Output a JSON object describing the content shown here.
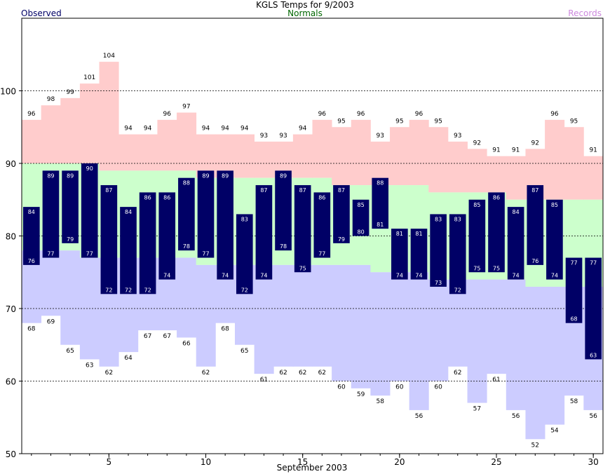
{
  "chart_data": {
    "type": "bar",
    "title": "KGLS Temps for 9/2003",
    "xlabel": "September 2003",
    "ylabel": "",
    "xlim": [
      0.5,
      30.5
    ],
    "ylim": [
      50,
      110
    ],
    "y_ticks": [
      50,
      60,
      70,
      80,
      90,
      100
    ],
    "x_ticks": [
      5,
      10,
      15,
      20,
      25,
      30
    ],
    "grid": true,
    "legend": {
      "observed": "Observed",
      "normals": "Normals",
      "records": "Records"
    },
    "colors": {
      "observed": "#000066",
      "record_band": "#ffcccc",
      "normal_band": "#ccffcc",
      "low_band": "#ccccff",
      "observed_label": "#000066",
      "normals_label": "#006600",
      "records_label": "#cc88dd"
    },
    "days": [
      1,
      2,
      3,
      4,
      5,
      6,
      7,
      8,
      9,
      10,
      11,
      12,
      13,
      14,
      15,
      16,
      17,
      18,
      19,
      20,
      21,
      22,
      23,
      24,
      25,
      26,
      27,
      28,
      29,
      30
    ],
    "series": [
      {
        "name": "Observed",
        "key": "observed_high",
        "values": [
          84,
          89,
          89,
          90,
          87,
          84,
          86,
          86,
          88,
          89,
          89,
          83,
          87,
          89,
          87,
          86,
          87,
          85,
          88,
          81,
          81,
          83,
          83,
          85,
          86,
          84,
          87,
          85,
          77,
          77
        ]
      },
      {
        "name": "Observed",
        "key": "observed_low",
        "values": [
          76,
          77,
          79,
          77,
          72,
          72,
          72,
          74,
          78,
          77,
          74,
          72,
          74,
          78,
          75,
          77,
          79,
          80,
          81,
          74,
          74,
          73,
          72,
          75,
          75,
          74,
          76,
          74,
          68,
          63
        ]
      },
      {
        "name": "Records",
        "key": "record_high",
        "values": [
          96,
          98,
          99,
          101,
          104,
          94,
          94,
          96,
          97,
          94,
          94,
          94,
          93,
          93,
          94,
          96,
          95,
          96,
          93,
          95,
          96,
          95,
          93,
          92,
          91,
          91,
          92,
          96,
          95,
          91
        ]
      },
      {
        "name": "Records",
        "key": "record_low",
        "values": [
          68,
          69,
          65,
          63,
          62,
          64,
          67,
          67,
          66,
          62,
          68,
          65,
          61,
          62,
          62,
          62,
          60,
          59,
          58,
          60,
          56,
          60,
          62,
          57,
          61,
          56,
          52,
          54,
          58,
          56
        ]
      },
      {
        "name": "Normals",
        "key": "normal_high",
        "values": [
          90,
          90,
          90,
          90,
          89,
          89,
          89,
          89,
          89,
          88,
          88,
          88,
          88,
          88,
          88,
          88,
          87,
          87,
          87,
          87,
          87,
          86,
          86,
          86,
          86,
          85,
          85,
          85,
          85,
          85
        ]
      },
      {
        "name": "Normals",
        "key": "normal_low",
        "values": [
          78,
          78,
          78,
          77,
          77,
          77,
          77,
          77,
          77,
          76,
          76,
          76,
          76,
          76,
          76,
          76,
          76,
          76,
          75,
          75,
          75,
          74,
          74,
          74,
          74,
          74,
          73,
          73,
          73,
          73
        ]
      }
    ]
  }
}
